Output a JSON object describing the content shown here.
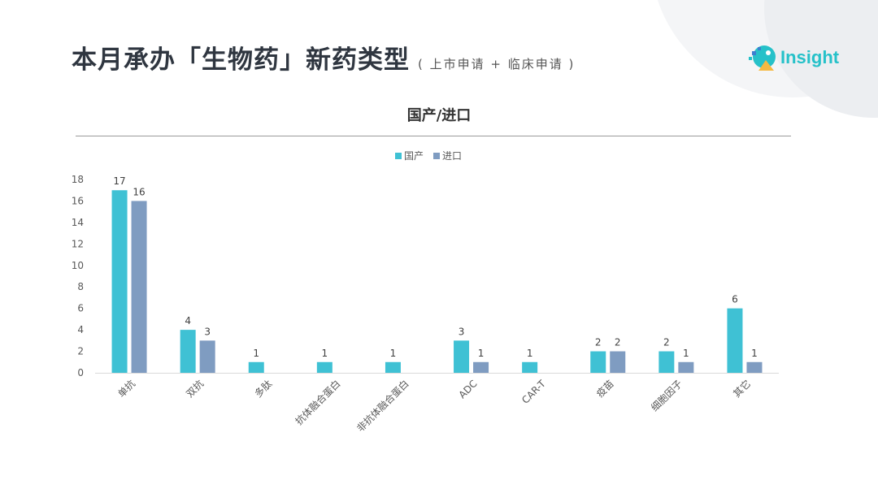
{
  "header": {
    "title": "本月承办「生物药」新药类型",
    "subtitle": "( 上市申请 + 临床申请 )"
  },
  "logo": {
    "text": "Insight",
    "icon": "insight-logo-icon",
    "color": "#26c1c9"
  },
  "chart_data": {
    "type": "bar",
    "title": "国产/进口",
    "categories": [
      "单抗",
      "双抗",
      "多肽",
      "抗体融合蛋白",
      "非抗体融合蛋白",
      "ADC",
      "CAR-T",
      "疫苗",
      "细胞因子",
      "其它"
    ],
    "series": [
      {
        "name": "国产",
        "color": "#3fc1d4",
        "values": [
          17,
          4,
          1,
          1,
          1,
          3,
          1,
          2,
          2,
          6
        ]
      },
      {
        "name": "进口",
        "color": "#7f9cc1",
        "values": [
          16,
          3,
          null,
          null,
          null,
          1,
          null,
          2,
          1,
          1
        ]
      }
    ],
    "ylim": [
      0,
      18
    ],
    "yticks": [
      0,
      2,
      4,
      6,
      8,
      10,
      12,
      14,
      16,
      18
    ],
    "xlabel": "",
    "ylabel": "",
    "grid": false,
    "legend": "top-center",
    "data_labels": true
  }
}
